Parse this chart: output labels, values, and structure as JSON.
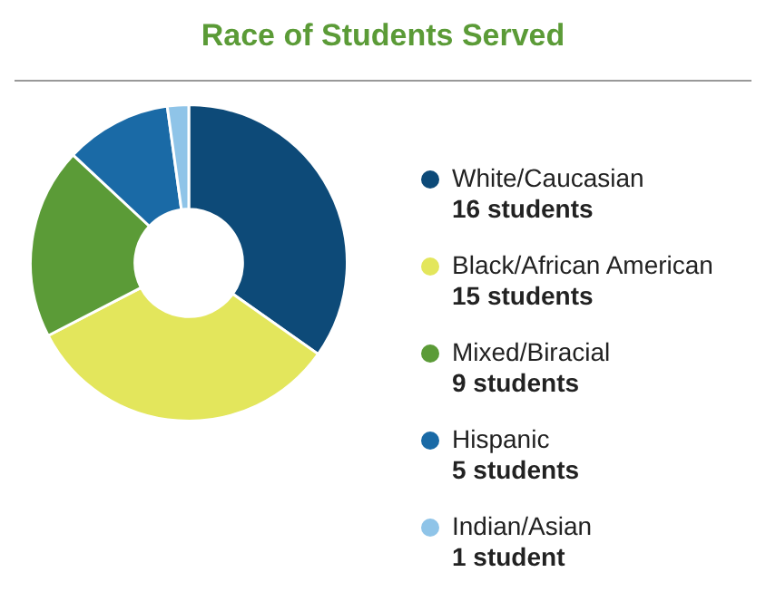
{
  "chart_data": {
    "type": "donut",
    "title": "Race of Students Served",
    "categories": [
      "White/Caucasian",
      "Black/African American",
      "Mixed/Biracial",
      "Hispanic",
      "Indian/Asian"
    ],
    "values": [
      16,
      15,
      9,
      5,
      1
    ],
    "value_labels": [
      "16 students",
      "15 students",
      "9 students",
      "5 students",
      "1 student"
    ],
    "colors": [
      "#0d4a78",
      "#e3e65c",
      "#5b9b37",
      "#1a6aa6",
      "#8fc4e8"
    ],
    "legend": "right"
  }
}
